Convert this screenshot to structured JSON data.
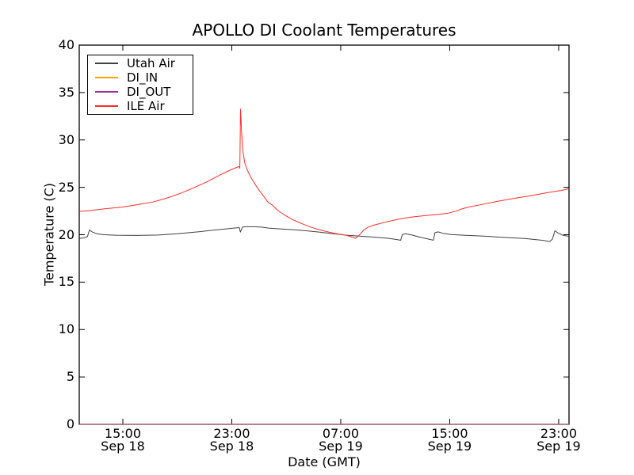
{
  "chart_data": {
    "type": "line",
    "title": "APOLLO DI Coolant Temperatures",
    "xlabel": "Date (GMT)",
    "ylabel": "Temperature (C)",
    "xlim": [
      11.8,
      47.76
    ],
    "ylim": [
      0,
      40
    ],
    "x_unit": "hours since Sep 18 00:00 GMT",
    "grid": false,
    "legend_position": "upper left",
    "frame_color": "#000000",
    "xticks": [
      {
        "value": 15,
        "time": "15:00",
        "date": "Sep 18"
      },
      {
        "value": 23,
        "time": "23:00",
        "date": "Sep 18"
      },
      {
        "value": 31,
        "time": "07:00",
        "date": "Sep 19"
      },
      {
        "value": 39,
        "time": "15:00",
        "date": "Sep 19"
      },
      {
        "value": 47,
        "time": "23:00",
        "date": "Sep 19"
      }
    ],
    "yticks": [
      {
        "value": 0,
        "label": "0"
      },
      {
        "value": 5,
        "label": "5"
      },
      {
        "value": 10,
        "label": "10"
      },
      {
        "value": 15,
        "label": "15"
      },
      {
        "value": 20,
        "label": "20"
      },
      {
        "value": 25,
        "label": "25"
      },
      {
        "value": 30,
        "label": "30"
      },
      {
        "value": 35,
        "label": "35"
      },
      {
        "value": 40,
        "label": "40"
      }
    ],
    "series": [
      {
        "name": "Utah Air",
        "color": "#404040",
        "opacity": 1,
        "points": [
          [
            11.8,
            19.6
          ],
          [
            12.15,
            19.68
          ],
          [
            12.4,
            19.8
          ],
          [
            12.55,
            20.5
          ],
          [
            12.75,
            20.3
          ],
          [
            13.1,
            20.1
          ],
          [
            13.6,
            20.0
          ],
          [
            14.5,
            19.95
          ],
          [
            16.0,
            19.93
          ],
          [
            17.6,
            19.97
          ],
          [
            19.0,
            20.1
          ],
          [
            20.5,
            20.3
          ],
          [
            21.8,
            20.5
          ],
          [
            22.8,
            20.65
          ],
          [
            23.3,
            20.72
          ],
          [
            23.55,
            20.75
          ],
          [
            23.63,
            20.28
          ],
          [
            23.78,
            20.8
          ],
          [
            24.0,
            20.85
          ],
          [
            24.6,
            20.85
          ],
          [
            25.2,
            20.8
          ],
          [
            25.7,
            20.7
          ],
          [
            26.2,
            20.65
          ],
          [
            26.9,
            20.58
          ],
          [
            27.8,
            20.5
          ],
          [
            28.6,
            20.4
          ],
          [
            29.4,
            20.28
          ],
          [
            30.2,
            20.15
          ],
          [
            31.0,
            20.02
          ],
          [
            31.6,
            19.93
          ],
          [
            32.4,
            19.85
          ],
          [
            33.4,
            19.75
          ],
          [
            34.4,
            19.63
          ],
          [
            35.1,
            19.5
          ],
          [
            35.4,
            19.42
          ],
          [
            35.52,
            20.02
          ],
          [
            35.75,
            20.1
          ],
          [
            36.2,
            19.98
          ],
          [
            36.8,
            19.75
          ],
          [
            37.5,
            19.52
          ],
          [
            37.8,
            19.42
          ],
          [
            37.92,
            20.22
          ],
          [
            38.15,
            20.3
          ],
          [
            38.5,
            20.15
          ],
          [
            39.1,
            20.02
          ],
          [
            40.0,
            19.95
          ],
          [
            41.5,
            19.85
          ],
          [
            43.0,
            19.72
          ],
          [
            44.5,
            19.6
          ],
          [
            45.8,
            19.42
          ],
          [
            46.35,
            19.28
          ],
          [
            46.55,
            19.55
          ],
          [
            46.72,
            20.42
          ],
          [
            46.95,
            20.18
          ],
          [
            47.3,
            19.95
          ],
          [
            47.76,
            19.82
          ]
        ]
      },
      {
        "name": "DI_IN",
        "color": "#ffa500",
        "opacity": 0.9,
        "points": [
          [
            11.8,
            0
          ],
          [
            47.76,
            0
          ]
        ]
      },
      {
        "name": "DI_OUT",
        "color": "#993399",
        "opacity": 0.65,
        "points": [
          [
            11.8,
            0
          ],
          [
            47.76,
            0
          ]
        ]
      },
      {
        "name": "ILE Air",
        "color": "#ff2d2d",
        "opacity": 1,
        "points": [
          [
            11.8,
            22.45
          ],
          [
            12.6,
            22.55
          ],
          [
            13.6,
            22.72
          ],
          [
            15.0,
            22.92
          ],
          [
            16.2,
            23.2
          ],
          [
            17.2,
            23.45
          ],
          [
            18.2,
            23.85
          ],
          [
            19.2,
            24.35
          ],
          [
            20.2,
            24.95
          ],
          [
            21.2,
            25.6
          ],
          [
            22.2,
            26.35
          ],
          [
            23.0,
            26.9
          ],
          [
            23.35,
            27.1
          ],
          [
            23.55,
            27.2
          ],
          [
            23.59,
            27.0
          ],
          [
            23.64,
            33.25
          ],
          [
            23.72,
            30.8
          ],
          [
            23.82,
            28.8
          ],
          [
            23.95,
            27.6
          ],
          [
            24.15,
            26.8
          ],
          [
            24.4,
            26.05
          ],
          [
            24.7,
            25.35
          ],
          [
            25.05,
            24.6
          ],
          [
            25.4,
            23.95
          ],
          [
            25.62,
            23.5
          ],
          [
            25.78,
            23.3
          ],
          [
            26.0,
            23.1
          ],
          [
            26.35,
            22.6
          ],
          [
            26.85,
            22.1
          ],
          [
            27.45,
            21.6
          ],
          [
            28.1,
            21.2
          ],
          [
            28.8,
            20.8
          ],
          [
            29.5,
            20.5
          ],
          [
            30.2,
            20.25
          ],
          [
            30.9,
            20.05
          ],
          [
            31.4,
            19.95
          ],
          [
            31.9,
            19.72
          ],
          [
            32.1,
            19.62
          ],
          [
            32.35,
            19.95
          ],
          [
            32.7,
            20.5
          ],
          [
            33.0,
            20.8
          ],
          [
            33.4,
            21.0
          ],
          [
            34.2,
            21.3
          ],
          [
            35.1,
            21.6
          ],
          [
            36.1,
            21.85
          ],
          [
            37.1,
            22.0
          ],
          [
            38.2,
            22.15
          ],
          [
            38.9,
            22.28
          ],
          [
            39.5,
            22.5
          ],
          [
            39.8,
            22.68
          ],
          [
            40.4,
            22.92
          ],
          [
            41.4,
            23.2
          ],
          [
            42.6,
            23.55
          ],
          [
            43.8,
            23.85
          ],
          [
            45.1,
            24.15
          ],
          [
            46.2,
            24.45
          ],
          [
            47.2,
            24.68
          ],
          [
            47.76,
            24.85
          ]
        ]
      }
    ]
  }
}
